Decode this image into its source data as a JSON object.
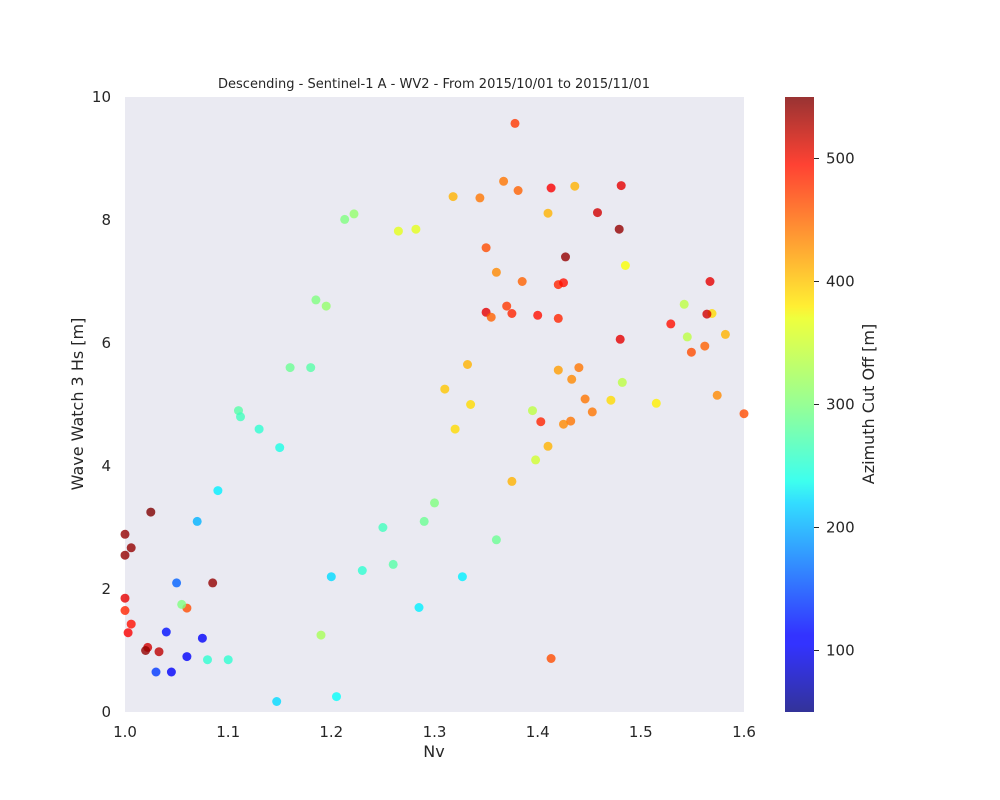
{
  "chart_data": {
    "type": "scatter",
    "title": "Descending - Sentinel-1 A - WV2 - From 2015/10/01 to 2015/11/01",
    "xlabel": "Nv",
    "ylabel": "Wave Watch 3 Hs [m]",
    "xlim": [
      1.0,
      1.6
    ],
    "ylim": [
      0,
      10
    ],
    "xticks": [
      "1.0",
      "1.1",
      "1.2",
      "1.3",
      "1.4",
      "1.5",
      "1.6"
    ],
    "yticks": [
      "0",
      "2",
      "4",
      "6",
      "8",
      "10"
    ],
    "grid": false,
    "background": "#eaeaf2",
    "colorbar": {
      "label": "Azimuth Cut Off [m]",
      "range": [
        50,
        550
      ],
      "ticks": [
        "100",
        "200",
        "300",
        "400",
        "500"
      ],
      "colormap": "jet"
    },
    "points": [
      [
        1.378,
        9.57,
        460
      ],
      [
        1.413,
        8.52,
        490
      ],
      [
        1.436,
        8.55,
        400
      ],
      [
        1.481,
        8.56,
        500
      ],
      [
        1.367,
        8.63,
        430
      ],
      [
        1.381,
        8.48,
        440
      ],
      [
        1.458,
        8.12,
        510
      ],
      [
        1.479,
        7.85,
        540
      ],
      [
        1.41,
        8.11,
        400
      ],
      [
        1.344,
        8.36,
        430
      ],
      [
        1.318,
        8.38,
        400
      ],
      [
        1.427,
        7.4,
        540
      ],
      [
        1.485,
        7.26,
        360
      ],
      [
        1.567,
        7.0,
        500
      ],
      [
        1.569,
        6.48,
        380
      ],
      [
        1.564,
        6.47,
        510
      ],
      [
        1.582,
        6.14,
        400
      ],
      [
        1.542,
        6.63,
        330
      ],
      [
        1.545,
        6.1,
        330
      ],
      [
        1.562,
        5.95,
        440
      ],
      [
        1.549,
        5.85,
        450
      ],
      [
        1.529,
        6.31,
        480
      ],
      [
        1.48,
        6.06,
        500
      ],
      [
        1.574,
        5.15,
        420
      ],
      [
        1.6,
        4.85,
        450
      ],
      [
        1.515,
        5.02,
        370
      ],
      [
        1.471,
        5.07,
        380
      ],
      [
        1.482,
        5.36,
        330
      ],
      [
        1.453,
        4.88,
        430
      ],
      [
        1.446,
        5.09,
        430
      ],
      [
        1.433,
        5.41,
        420
      ],
      [
        1.432,
        4.73,
        430
      ],
      [
        1.425,
        4.68,
        420
      ],
      [
        1.413,
        0.87,
        450
      ],
      [
        1.42,
        5.56,
        410
      ],
      [
        1.44,
        5.6,
        430
      ],
      [
        1.42,
        6.95,
        470
      ],
      [
        1.425,
        6.98,
        480
      ],
      [
        1.403,
        4.72,
        470
      ],
      [
        1.41,
        4.32,
        400
      ],
      [
        1.395,
        4.9,
        330
      ],
      [
        1.398,
        4.1,
        340
      ],
      [
        1.375,
        3.75,
        400
      ],
      [
        1.36,
        2.8,
        290
      ],
      [
        1.285,
        1.7,
        230
      ],
      [
        1.327,
        2.2,
        230
      ],
      [
        1.205,
        0.25,
        240
      ],
      [
        1.147,
        0.17,
        220
      ],
      [
        1.213,
        8.01,
        300
      ],
      [
        1.222,
        8.1,
        310
      ],
      [
        1.265,
        7.82,
        350
      ],
      [
        1.282,
        7.85,
        350
      ],
      [
        1.022,
        1.05,
        510
      ],
      [
        1.02,
        1.0,
        540
      ],
      [
        1.025,
        3.25,
        550
      ],
      [
        1.006,
        2.67,
        540
      ],
      [
        1.0,
        2.89,
        540
      ],
      [
        1.0,
        2.55,
        540
      ],
      [
        1.0,
        1.85,
        500
      ],
      [
        1.0,
        1.65,
        470
      ],
      [
        1.006,
        1.43,
        480
      ],
      [
        1.003,
        1.29,
        490
      ],
      [
        1.085,
        2.1,
        540
      ],
      [
        1.033,
        0.98,
        520
      ],
      [
        1.06,
        1.69,
        450
      ],
      [
        1.055,
        1.75,
        300
      ],
      [
        1.08,
        0.85,
        260
      ],
      [
        1.1,
        0.85,
        260
      ],
      [
        1.19,
        1.25,
        320
      ],
      [
        1.35,
        6.5,
        500
      ],
      [
        1.375,
        6.48,
        470
      ],
      [
        1.35,
        7.55,
        450
      ],
      [
        1.37,
        6.6,
        460
      ],
      [
        1.355,
        6.42,
        440
      ],
      [
        1.4,
        6.45,
        480
      ],
      [
        1.42,
        6.4,
        470
      ],
      [
        1.36,
        7.15,
        420
      ],
      [
        1.385,
        7.0,
        440
      ],
      [
        1.332,
        5.65,
        400
      ],
      [
        1.31,
        5.25,
        390
      ],
      [
        1.335,
        5.0,
        380
      ],
      [
        1.32,
        4.6,
        380
      ],
      [
        1.3,
        3.4,
        300
      ],
      [
        1.29,
        3.1,
        290
      ],
      [
        1.26,
        2.4,
        280
      ],
      [
        1.25,
        3.0,
        270
      ],
      [
        1.23,
        2.3,
        260
      ],
      [
        1.2,
        2.2,
        220
      ],
      [
        1.185,
        6.7,
        300
      ],
      [
        1.195,
        6.6,
        310
      ],
      [
        1.18,
        5.6,
        280
      ],
      [
        1.16,
        5.6,
        290
      ],
      [
        1.15,
        4.3,
        250
      ],
      [
        1.13,
        4.6,
        260
      ],
      [
        1.11,
        4.9,
        280
      ],
      [
        1.112,
        4.8,
        270
      ],
      [
        1.09,
        3.6,
        230
      ],
      [
        1.07,
        3.1,
        200
      ],
      [
        1.05,
        2.1,
        160
      ],
      [
        1.04,
        1.3,
        120
      ],
      [
        1.03,
        0.65,
        140
      ],
      [
        1.045,
        0.65,
        110
      ],
      [
        1.06,
        0.9,
        110
      ],
      [
        1.075,
        1.2,
        110
      ]
    ]
  }
}
